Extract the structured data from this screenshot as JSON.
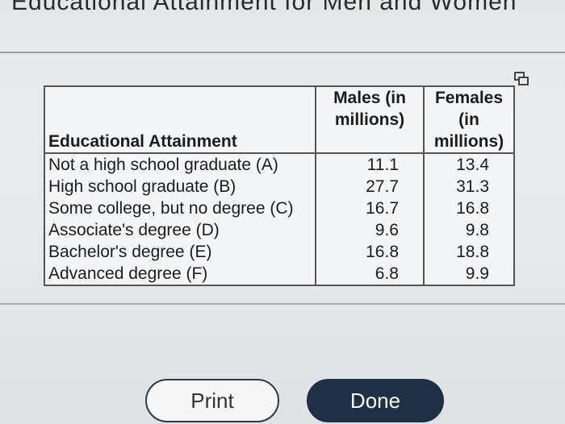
{
  "dialog": {
    "title": "Educational Attainment for Men and Women"
  },
  "table": {
    "headers": {
      "attainment": "Educational Attainment",
      "males": "Males (in millions)",
      "females": "Females (in millions)"
    },
    "rows": [
      {
        "label": "Not a high school graduate (A)",
        "males": "11.1",
        "females": "13.4"
      },
      {
        "label": "High school graduate (B)",
        "males": "27.7",
        "females": "31.3"
      },
      {
        "label": "Some college, but no degree (C)",
        "males": "16.7",
        "females": "16.8"
      },
      {
        "label": "Associate's degree (D)",
        "males": "9.6",
        "females": "9.8"
      },
      {
        "label": "Bachelor's degree (E)",
        "males": "16.8",
        "females": "18.8"
      },
      {
        "label": "Advanced degree (F)",
        "males": "6.8",
        "females": "9.9"
      }
    ]
  },
  "buttons": {
    "print": "Print",
    "done": "Done"
  },
  "icons": {
    "copy": "copy-icon"
  }
}
